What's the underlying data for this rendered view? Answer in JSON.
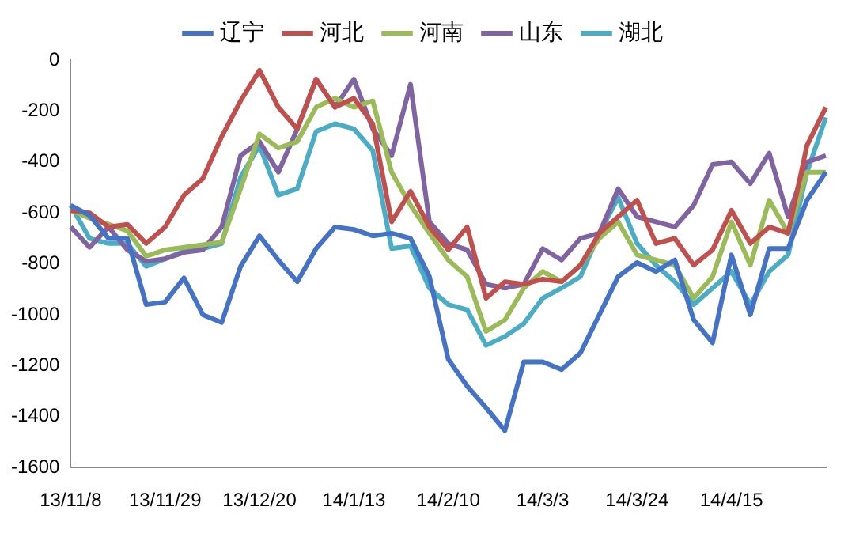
{
  "chart_data": {
    "type": "line",
    "categories": [
      "13/11/8",
      null,
      null,
      null,
      null,
      "13/11/29",
      null,
      null,
      null,
      null,
      "13/12/20",
      null,
      null,
      null,
      null,
      "14/1/13",
      null,
      null,
      null,
      null,
      "14/2/10",
      null,
      null,
      null,
      null,
      "14/3/3",
      null,
      null,
      null,
      null,
      "14/3/24",
      null,
      null,
      null,
      null,
      "14/4/15",
      null,
      null,
      null,
      null,
      null
    ],
    "series": [
      {
        "name": "辽宁",
        "color": "#4472c4",
        "values": [
          -570,
          -610,
          -700,
          -700,
          -960,
          -950,
          -855,
          -1000,
          -1030,
          -810,
          -690,
          -785,
          -870,
          -740,
          -655,
          -665,
          -690,
          -680,
          -700,
          -850,
          -1175,
          -1280,
          -1365,
          -1455,
          -1185,
          -1185,
          -1215,
          -1150,
          -1000,
          -850,
          -795,
          -830,
          -785,
          -1020,
          -1110,
          -765,
          -1000,
          -740,
          -740,
          -550,
          -440
        ]
      },
      {
        "name": "河北",
        "color": "#c0504d",
        "values": [
          -590,
          -600,
          -655,
          -645,
          -720,
          -655,
          -530,
          -465,
          -300,
          -160,
          -40,
          -185,
          -270,
          -75,
          -185,
          -150,
          -250,
          -635,
          -515,
          -655,
          -745,
          -655,
          -935,
          -870,
          -880,
          -860,
          -870,
          -805,
          -680,
          -615,
          -550,
          -720,
          -700,
          -805,
          -745,
          -590,
          -720,
          -655,
          -680,
          -335,
          -185
        ]
      },
      {
        "name": "河南",
        "color": "#9bbb59",
        "values": [
          -590,
          -620,
          -645,
          -670,
          -770,
          -745,
          -735,
          -725,
          -715,
          -505,
          -290,
          -345,
          -320,
          -185,
          -150,
          -185,
          -160,
          -440,
          -570,
          -680,
          -785,
          -850,
          -1065,
          -1020,
          -895,
          -830,
          -870,
          -805,
          -700,
          -635,
          -765,
          -785,
          -805,
          -935,
          -850,
          -635,
          -805,
          -550,
          -680,
          -440,
          -440
        ]
      },
      {
        "name": "山东",
        "color": "#8064a2",
        "values": [
          -655,
          -735,
          -655,
          -745,
          -790,
          -780,
          -755,
          -745,
          -655,
          -375,
          -320,
          -440,
          -270,
          -75,
          -185,
          -75,
          -270,
          -375,
          -95,
          -635,
          -720,
          -745,
          -880,
          -895,
          -880,
          -740,
          -785,
          -700,
          -680,
          -505,
          -615,
          -635,
          -655,
          -570,
          -410,
          -400,
          -485,
          -365,
          -615,
          -400,
          -375
        ]
      },
      {
        "name": "湖北",
        "color": "#4bacc6",
        "values": [
          -570,
          -700,
          -720,
          -720,
          -810,
          -780,
          -750,
          -740,
          -720,
          -460,
          -335,
          -530,
          -505,
          -280,
          -250,
          -270,
          -355,
          -740,
          -730,
          -895,
          -960,
          -980,
          -1120,
          -1085,
          -1035,
          -935,
          -895,
          -850,
          -680,
          -540,
          -720,
          -805,
          -870,
          -960,
          -895,
          -830,
          -960,
          -830,
          -765,
          -440,
          -225
        ]
      }
    ],
    "ylim": [
      -1600,
      0
    ],
    "yticks": [
      -1600,
      -1400,
      -1200,
      -1000,
      -800,
      -600,
      -400,
      -200,
      0
    ],
    "grid": false,
    "legend": "top",
    "marker": "none",
    "line_style": "solid"
  }
}
